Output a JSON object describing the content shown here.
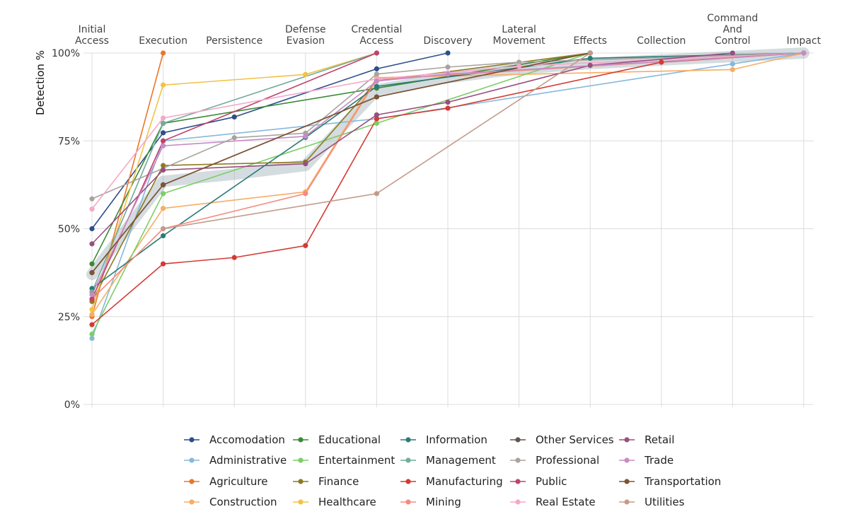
{
  "chart_data": {
    "type": "line",
    "ylabel": "Detection %",
    "ylim": [
      0,
      100
    ],
    "yticks": [
      0,
      25,
      50,
      75,
      100
    ],
    "ytick_labels": [
      "0%",
      "25%",
      "50%",
      "75%",
      "100%"
    ],
    "grid": true,
    "legend_position": "bottom",
    "categories": [
      [
        "Initial",
        "Access"
      ],
      [
        "Execution"
      ],
      [
        "Persistence"
      ],
      [
        "Defense",
        "Evasion"
      ],
      [
        "Credential",
        "Access"
      ],
      [
        "Discovery"
      ],
      [
        "Lateral",
        "Movement"
      ],
      [
        "Effects"
      ],
      [
        "Collection"
      ],
      [
        "Command",
        "And",
        "Control"
      ],
      [
        "Impact"
      ]
    ],
    "trend_band": [
      [
        0,
        37
      ],
      [
        1,
        63.5
      ],
      [
        2,
        65.5
      ],
      [
        3,
        68
      ],
      [
        4,
        89.5
      ],
      [
        5,
        93
      ],
      [
        6,
        95.5
      ],
      [
        7,
        97
      ],
      [
        8,
        98
      ],
      [
        9,
        99
      ],
      [
        10,
        100
      ]
    ],
    "series": [
      {
        "name": "Accomodation",
        "color": "#2c4f8c",
        "points": [
          [
            0,
            50
          ],
          [
            1,
            77.3
          ],
          [
            2,
            81.8
          ],
          [
            4,
            95.5
          ],
          [
            5,
            100
          ]
        ]
      },
      {
        "name": "Administrative",
        "color": "#86b8dc",
        "points": [
          [
            0,
            18.8
          ],
          [
            1,
            75
          ],
          [
            4,
            81.3
          ],
          [
            9,
            96.9
          ],
          [
            10,
            100
          ]
        ]
      },
      {
        "name": "Agriculture",
        "color": "#e9772a",
        "points": [
          [
            0,
            25
          ],
          [
            1,
            100
          ]
        ]
      },
      {
        "name": "Construction",
        "color": "#f7ad63",
        "points": [
          [
            0,
            25.6
          ],
          [
            1,
            55.8
          ],
          [
            3,
            60.5
          ],
          [
            4,
            93
          ],
          [
            9,
            95.3
          ],
          [
            10,
            100
          ]
        ]
      },
      {
        "name": "Educational",
        "color": "#3a8a35",
        "points": [
          [
            0,
            40
          ],
          [
            1,
            80
          ],
          [
            4,
            90
          ],
          [
            7,
            100
          ]
        ]
      },
      {
        "name": "Entertainment",
        "color": "#7cce67",
        "points": [
          [
            0,
            20
          ],
          [
            1,
            60
          ],
          [
            4,
            80
          ],
          [
            7,
            100
          ]
        ]
      },
      {
        "name": "Finance",
        "color": "#8e7a22",
        "points": [
          [
            0,
            29.3
          ],
          [
            1,
            68
          ],
          [
            3,
            69
          ],
          [
            4,
            92
          ],
          [
            7,
            100
          ]
        ]
      },
      {
        "name": "Healthcare",
        "color": "#f1c244",
        "points": [
          [
            0,
            27
          ],
          [
            1,
            90.9
          ],
          [
            3,
            93.9
          ],
          [
            4,
            100
          ]
        ]
      },
      {
        "name": "Information",
        "color": "#2b7c78",
        "points": [
          [
            0,
            33
          ],
          [
            1,
            48
          ],
          [
            3,
            76
          ],
          [
            4,
            90.5
          ],
          [
            7,
            98.5
          ],
          [
            10,
            100
          ]
        ]
      },
      {
        "name": "Management",
        "color": "#72ab9c",
        "points": [
          [
            0,
            32
          ],
          [
            1,
            80
          ],
          [
            4,
            100
          ]
        ]
      },
      {
        "name": "Manufacturing",
        "color": "#d43a35",
        "points": [
          [
            0,
            22.7
          ],
          [
            1,
            40
          ],
          [
            2,
            41.8
          ],
          [
            3,
            45.2
          ],
          [
            4,
            81.3
          ],
          [
            5,
            84.3
          ],
          [
            8,
            97.4
          ],
          [
            10,
            100
          ]
        ]
      },
      {
        "name": "Mining",
        "color": "#f58b7e",
        "points": [
          [
            0,
            30
          ],
          [
            1,
            50
          ],
          [
            3,
            60
          ],
          [
            4,
            92.5
          ],
          [
            10,
            100
          ]
        ]
      },
      {
        "name": "Other Services",
        "color": "#5e5450",
        "points": [
          [
            0,
            37.5
          ],
          [
            1,
            62.5
          ],
          [
            4,
            87.5
          ],
          [
            7,
            100
          ]
        ]
      },
      {
        "name": "Professional",
        "color": "#a9a39e",
        "points": [
          [
            0,
            58.5
          ],
          [
            2,
            75.9
          ],
          [
            3,
            77.2
          ],
          [
            4,
            94
          ],
          [
            5,
            96
          ],
          [
            6,
            97.4
          ],
          [
            10,
            100
          ]
        ]
      },
      {
        "name": "Public",
        "color": "#c0436a",
        "points": [
          [
            0,
            30
          ],
          [
            1,
            75
          ],
          [
            4,
            100
          ]
        ]
      },
      {
        "name": "Real Estate",
        "color": "#f4a9c9",
        "points": [
          [
            0,
            55.6
          ],
          [
            1,
            81.5
          ],
          [
            4,
            92.6
          ],
          [
            5,
            94.4
          ],
          [
            6,
            96.3
          ],
          [
            10,
            100
          ]
        ]
      },
      {
        "name": "Retail",
        "color": "#974f7f",
        "points": [
          [
            0,
            45.7
          ],
          [
            1,
            66.7
          ],
          [
            3,
            68.5
          ],
          [
            4,
            82.4
          ],
          [
            5,
            86
          ],
          [
            7,
            96.5
          ],
          [
            9,
            100
          ]
        ]
      },
      {
        "name": "Trade",
        "color": "#c78bc6",
        "points": [
          [
            0,
            31.3
          ],
          [
            1,
            73.6
          ],
          [
            3,
            76.3
          ],
          [
            4,
            92
          ],
          [
            5,
            94
          ],
          [
            10,
            100
          ]
        ]
      },
      {
        "name": "Transportation",
        "color": "#7e5433",
        "points": [
          [
            0,
            37.5
          ],
          [
            1,
            62.5
          ],
          [
            4,
            87.5
          ],
          [
            7,
            100
          ]
        ]
      },
      {
        "name": "Utilities",
        "color": "#c39b88",
        "points": [
          [
            1,
            50
          ],
          [
            4,
            60
          ],
          [
            7,
            100
          ]
        ]
      }
    ]
  }
}
